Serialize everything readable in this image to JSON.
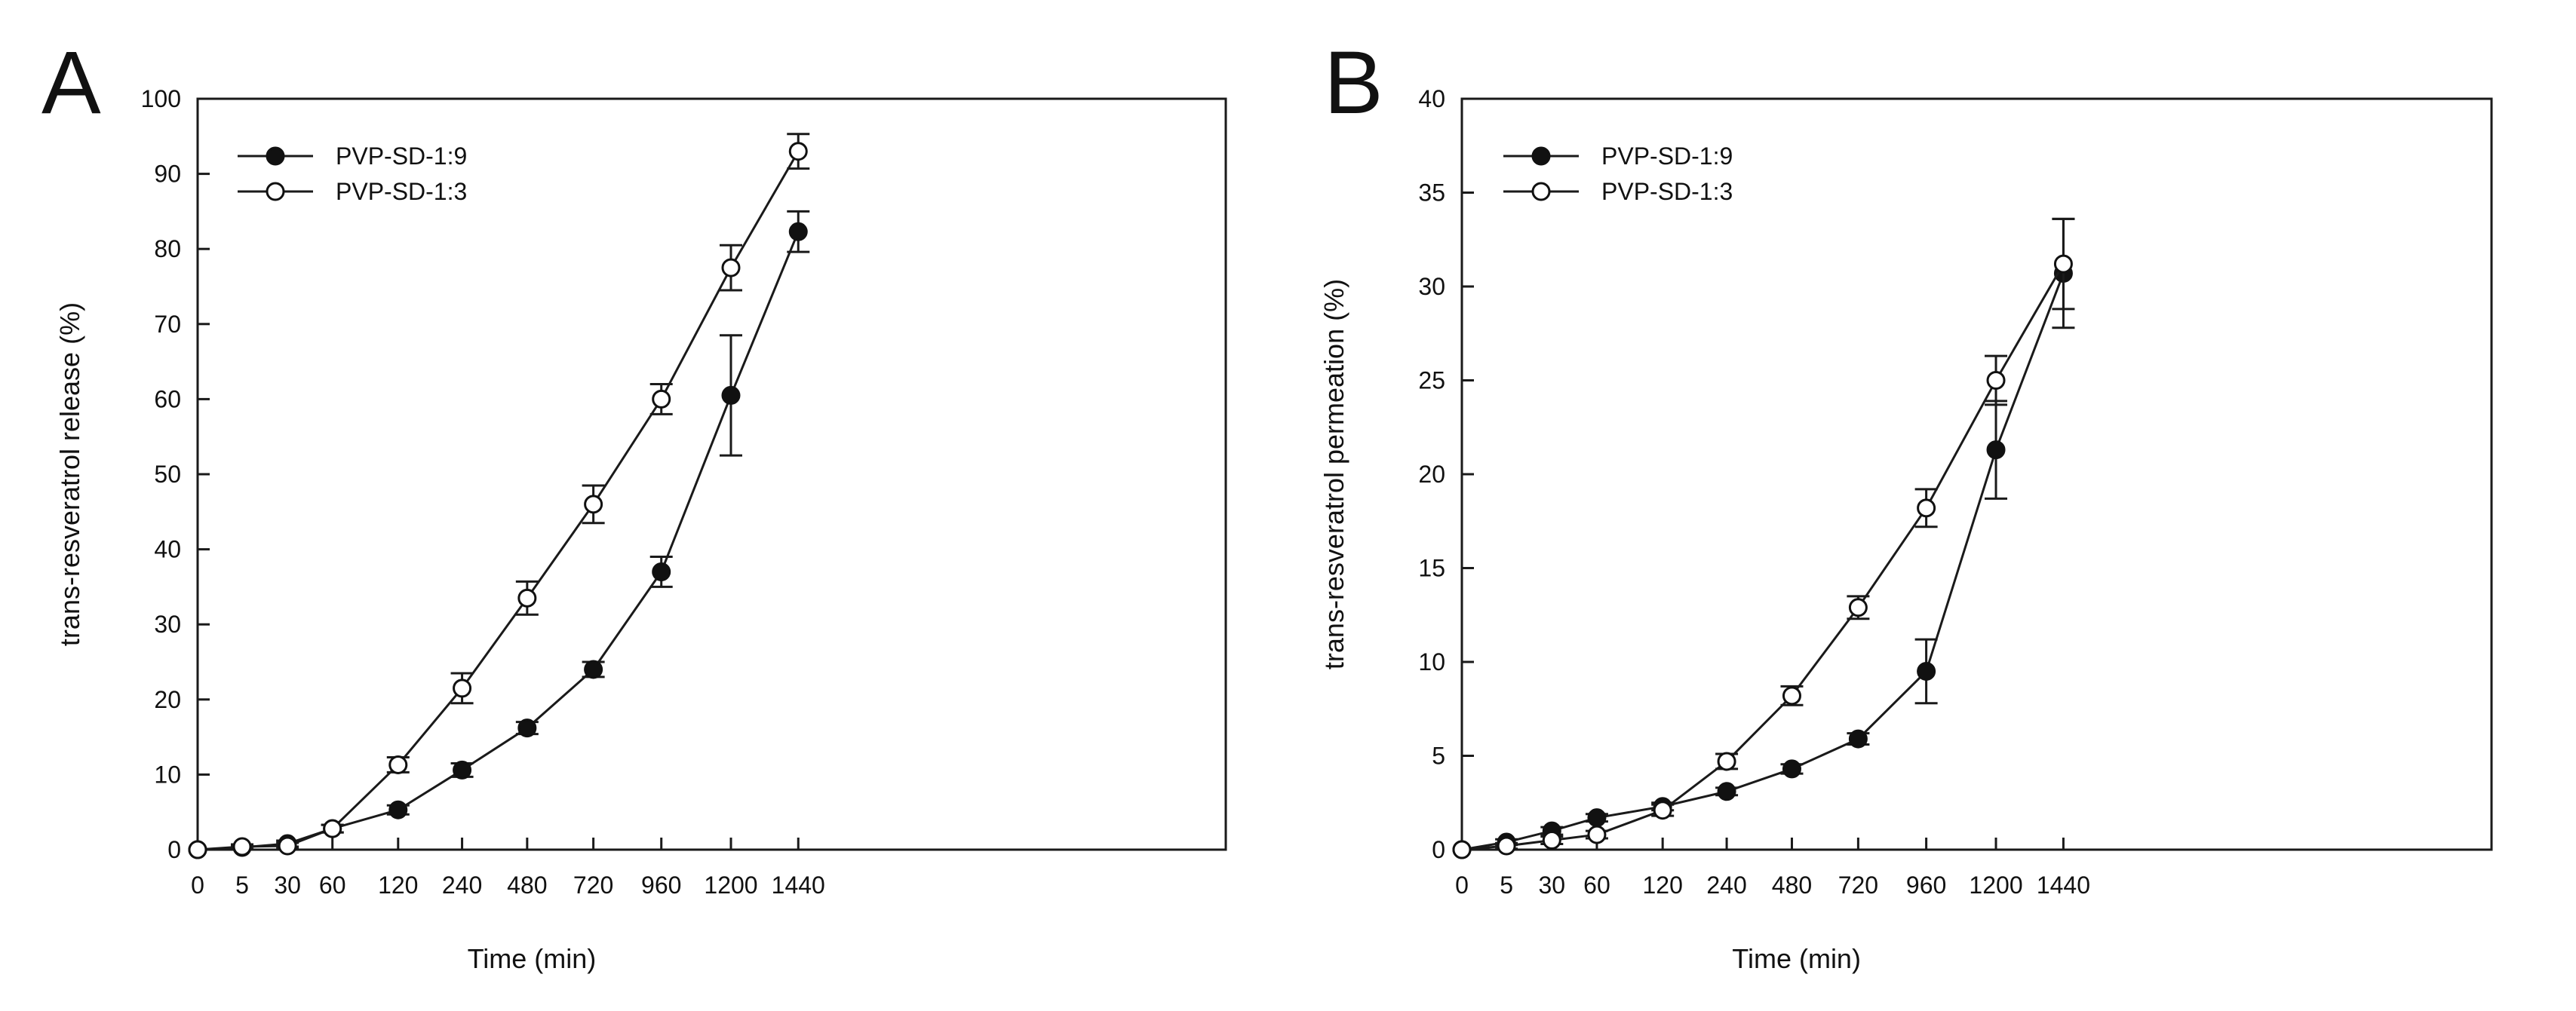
{
  "chart_data": [
    {
      "panel_label": "A",
      "type": "line",
      "xlabel": "Time (min)",
      "ylabel": "trans-resveratrol release (%)",
      "categories": [
        "0",
        "5",
        "30",
        "60",
        "120",
        "240",
        "480",
        "720",
        "960",
        "1200",
        "1440"
      ],
      "ylim": [
        0,
        100
      ],
      "yticks": [
        0,
        10,
        20,
        30,
        40,
        50,
        60,
        70,
        80,
        90,
        100
      ],
      "legend_position": "top-left",
      "series": [
        {
          "name": "PVP-SD-1:9",
          "marker": "filled-circle",
          "values": [
            0,
            0.3,
            0.8,
            2.8,
            5.3,
            10.6,
            16.2,
            24.0,
            37.0,
            60.5,
            82.3
          ],
          "errors": [
            0,
            0.3,
            0.4,
            0.5,
            0.6,
            0.9,
            0.8,
            1.0,
            2.0,
            8.0,
            2.7
          ]
        },
        {
          "name": "PVP-SD-1:3",
          "marker": "open-circle",
          "values": [
            0,
            0.4,
            0.5,
            2.8,
            11.3,
            21.5,
            33.5,
            46.0,
            60.0,
            77.5,
            93.0
          ],
          "errors": [
            0,
            0.3,
            0.4,
            0.5,
            1.0,
            2.0,
            2.2,
            2.5,
            2.0,
            3.0,
            2.3
          ]
        }
      ]
    },
    {
      "panel_label": "B",
      "type": "line",
      "xlabel": "Time (min)",
      "ylabel": "trans-resveratrol permeation (%)",
      "categories": [
        "0",
        "5",
        "30",
        "60",
        "120",
        "240",
        "480",
        "720",
        "960",
        "1200",
        "1440"
      ],
      "ylim": [
        0,
        40
      ],
      "yticks": [
        0,
        5,
        10,
        15,
        20,
        25,
        30,
        35,
        40
      ],
      "legend_position": "top-left",
      "series": [
        {
          "name": "PVP-SD-1:9",
          "marker": "filled-circle",
          "values": [
            0,
            0.4,
            1.0,
            1.7,
            2.3,
            3.1,
            4.3,
            5.9,
            9.5,
            21.3,
            30.7
          ],
          "errors": [
            0,
            0.15,
            0.2,
            0.2,
            0.2,
            0.2,
            0.25,
            0.3,
            1.7,
            2.6,
            2.9
          ]
        },
        {
          "name": "PVP-SD-1:3",
          "marker": "open-circle",
          "values": [
            0,
            0.2,
            0.5,
            0.8,
            2.1,
            4.7,
            8.2,
            12.9,
            18.2,
            25.0,
            31.2
          ],
          "errors": [
            0,
            0.15,
            0.2,
            0.2,
            0.3,
            0.4,
            0.5,
            0.6,
            1.0,
            1.3,
            2.4
          ]
        }
      ]
    }
  ]
}
